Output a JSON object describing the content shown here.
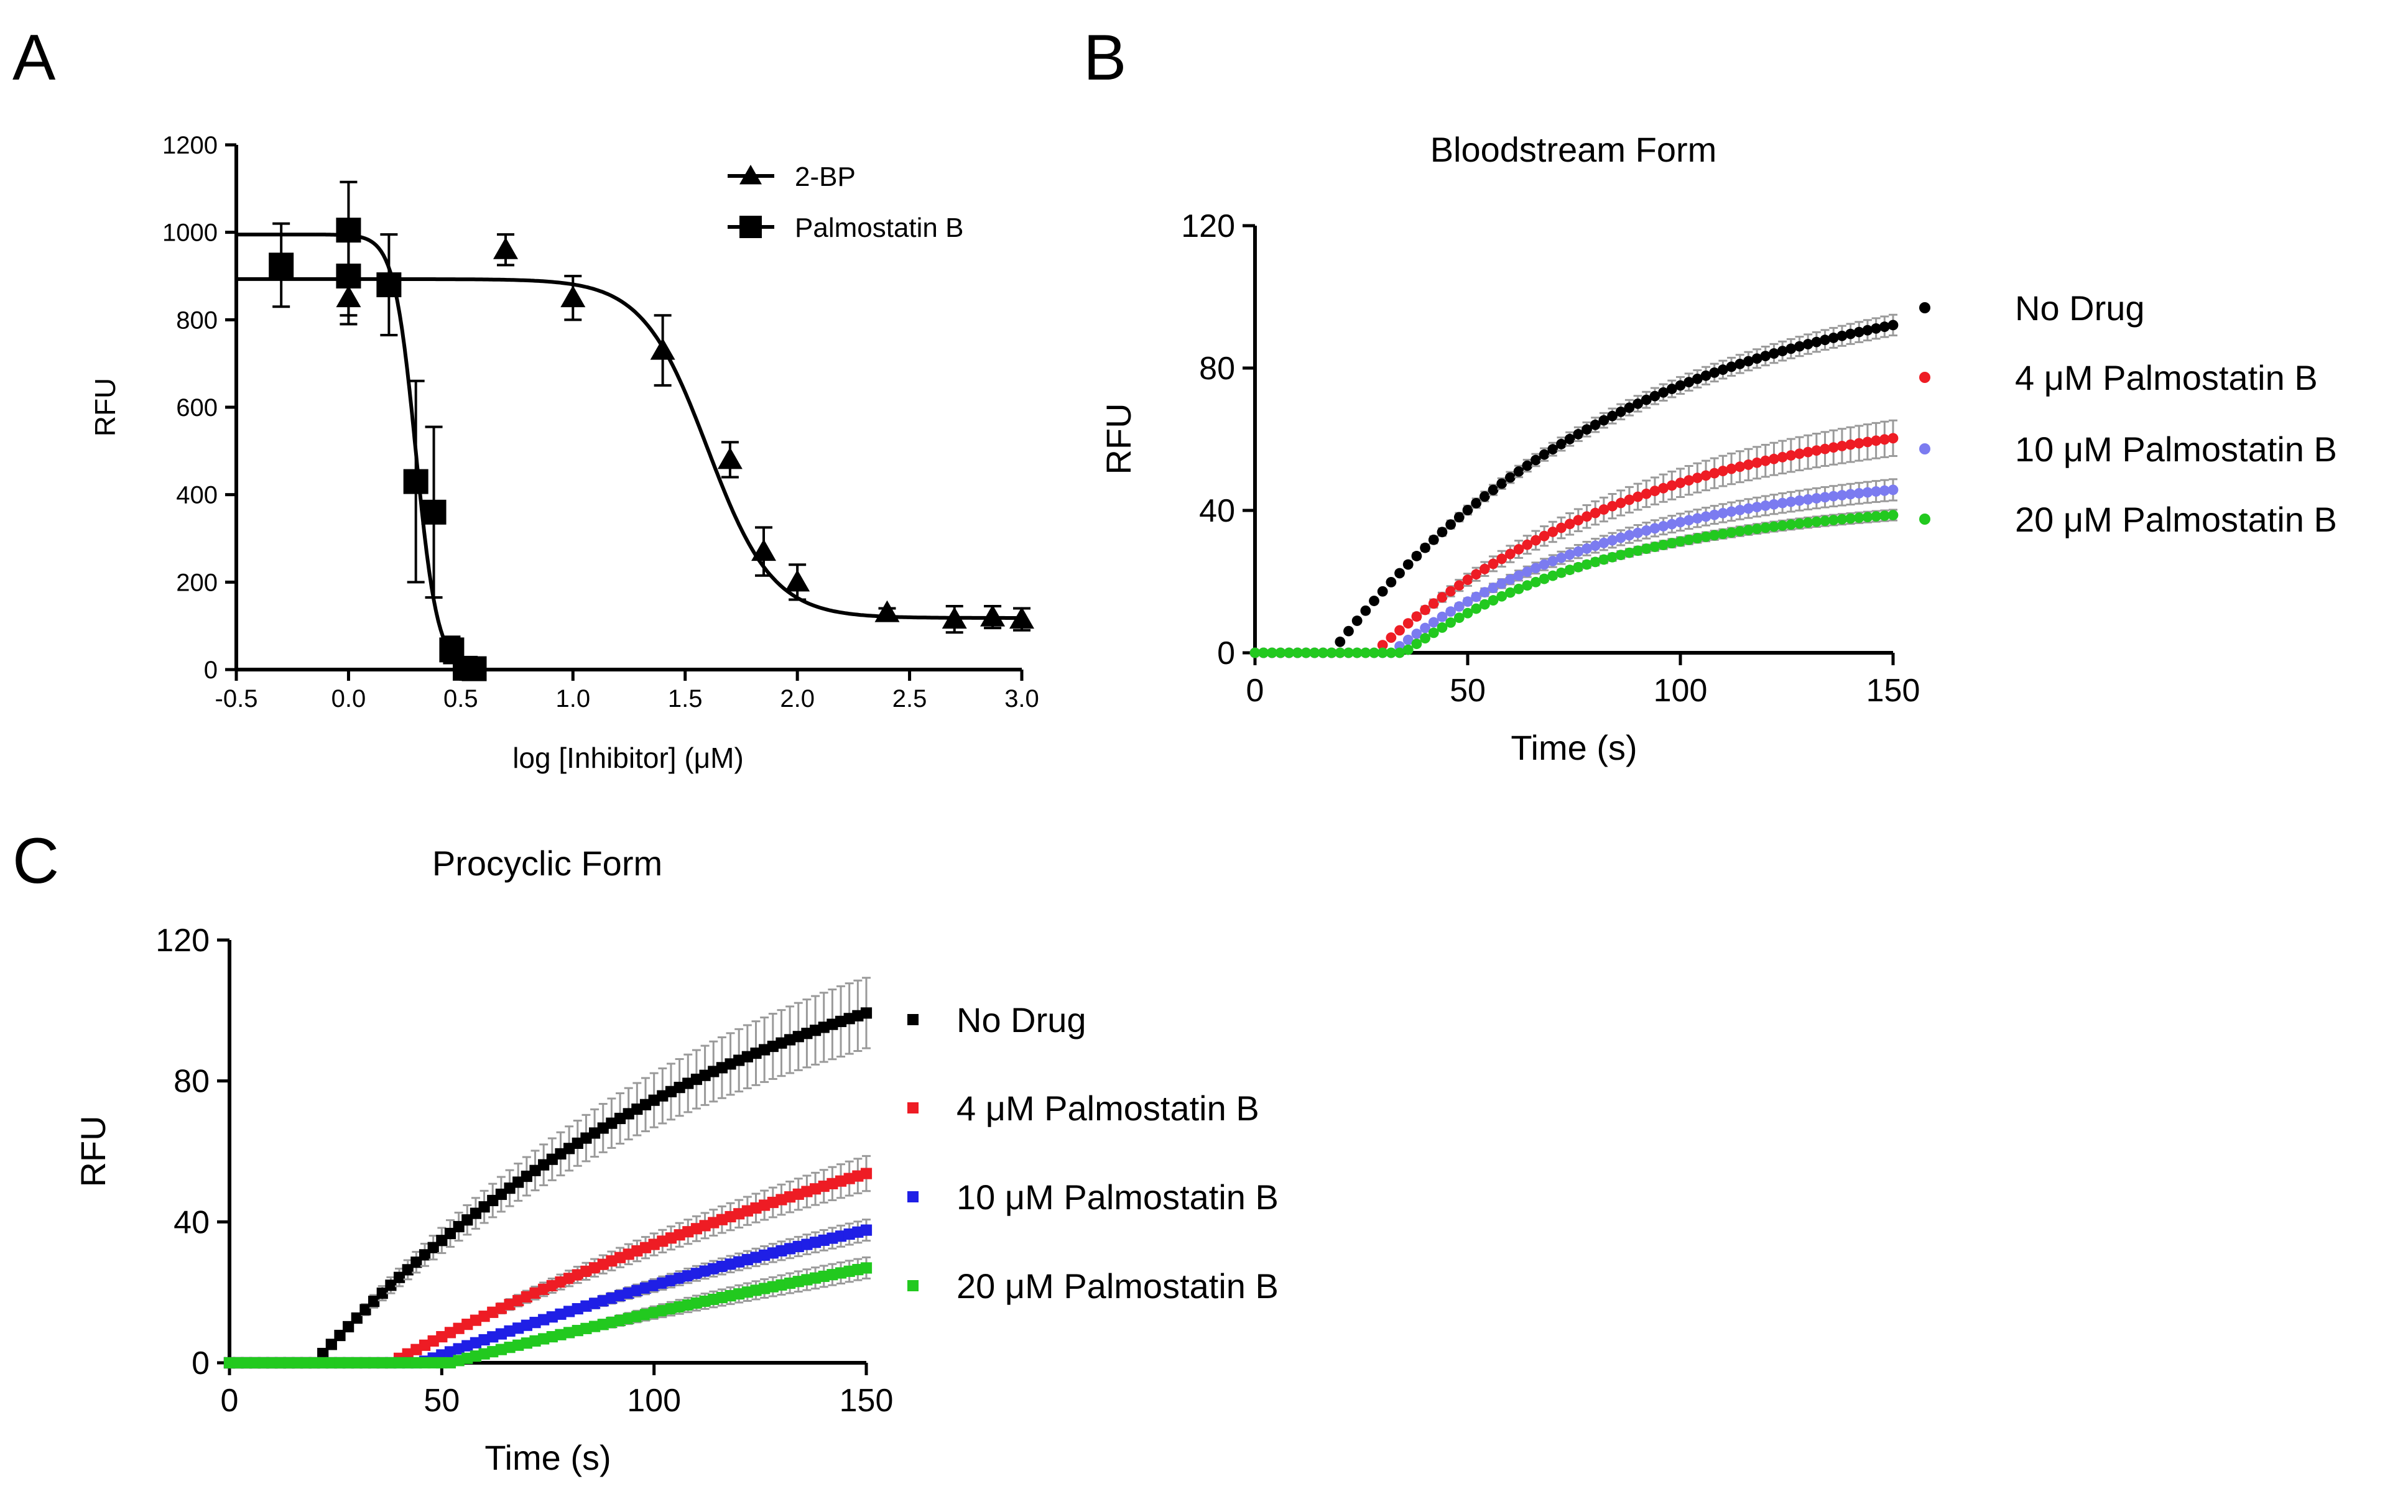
{
  "figure": {
    "panels": [
      "A",
      "B",
      "C"
    ]
  },
  "colors": {
    "black": "#000000",
    "red": "#ee1c24",
    "blue_light": "#7b7bf0",
    "blue": "#1f1fe6",
    "green": "#22c91f",
    "errorbar": "#9a9a9a"
  },
  "chart_data": [
    {
      "id": "A",
      "type": "scatter",
      "title": "",
      "xlabel": "log [Inhibitor] (μM)",
      "ylabel": "RFU",
      "xlim": [
        -0.5,
        3.0
      ],
      "ylim": [
        0,
        1200
      ],
      "xticks": [
        "-0.5",
        "0.0",
        "0.5",
        "1.0",
        "1.5",
        "2.0",
        "2.5",
        "3.0"
      ],
      "yticks": [
        "0",
        "200",
        "400",
        "600",
        "800",
        "1000",
        "1200"
      ],
      "legend_position": "top-right",
      "series": [
        {
          "name": "2-BP",
          "marker": "triangle",
          "color": "#000000",
          "points": [
            {
              "x": 0.0,
              "y": 850,
              "err": 60
            },
            {
              "x": 0.7,
              "y": 960,
              "err": 35
            },
            {
              "x": 1.0,
              "y": 850,
              "err": 50
            },
            {
              "x": 1.4,
              "y": 730,
              "err": 80
            },
            {
              "x": 1.7,
              "y": 480,
              "err": 40
            },
            {
              "x": 1.85,
              "y": 270,
              "err": 55
            },
            {
              "x": 2.0,
              "y": 200,
              "err": 40
            },
            {
              "x": 2.4,
              "y": 130,
              "err": 10
            },
            {
              "x": 2.7,
              "y": 115,
              "err": 30
            },
            {
              "x": 2.87,
              "y": 120,
              "err": 25
            },
            {
              "x": 3.0,
              "y": 115,
              "err": 25
            }
          ],
          "fit": {
            "top": 893,
            "bottom": 118,
            "log_ic50": 1.6,
            "hill": 3.0
          }
        },
        {
          "name": "Palmostatin B",
          "marker": "square",
          "color": "#000000",
          "points": [
            {
              "x": -0.3,
              "y": 925,
              "err": 95
            },
            {
              "x": 0.0,
              "y": 1005,
              "err": 110
            },
            {
              "x": 0.0,
              "y": 900,
              "err": 90
            },
            {
              "x": 0.18,
              "y": 880,
              "err": 115
            },
            {
              "x": 0.3,
              "y": 430,
              "err": 230
            },
            {
              "x": 0.38,
              "y": 360,
              "err": 195
            },
            {
              "x": 0.46,
              "y": 45,
              "err": 30
            },
            {
              "x": 0.52,
              "y": 3,
              "err": 5
            },
            {
              "x": 0.56,
              "y": 2,
              "err": 5
            }
          ],
          "fit": {
            "top": 995,
            "bottom": 0,
            "log_ic50": 0.3,
            "hill": 9.0
          }
        }
      ]
    },
    {
      "id": "B",
      "type": "scatter",
      "title": "Bloodstream Form",
      "xlabel": "Time (s)",
      "ylabel": "RFU",
      "xlim": [
        0,
        150
      ],
      "ylim": [
        0,
        120
      ],
      "xticks": [
        "0",
        "50",
        "100",
        "150"
      ],
      "yticks": [
        "0",
        "40",
        "80",
        "120"
      ],
      "legend_position": "right",
      "series": [
        {
          "name": "No Drug",
          "color": "#000000",
          "plateau": 108,
          "k": 0.0145,
          "lag": 18,
          "final": 95,
          "err": 3
        },
        {
          "name": "4 μM Palmostatin B",
          "color": "#ee1c24",
          "plateau": 71,
          "k": 0.0155,
          "lag": 28,
          "final": 60,
          "err": 5
        },
        {
          "name": "10 μM Palmostatin B",
          "color": "#7b7bf0",
          "plateau": 52,
          "k": 0.018,
          "lag": 32,
          "final": 46,
          "err": 3
        },
        {
          "name": "20 μM Palmostatin B",
          "color": "#22c91f",
          "plateau": 43,
          "k": 0.02,
          "lag": 35,
          "final": 38,
          "err": 1.5
        }
      ]
    },
    {
      "id": "C",
      "type": "scatter",
      "title": "Procyclic Form",
      "xlabel": "Time (s)",
      "ylabel": "RFU",
      "xlim": [
        0,
        150
      ],
      "ylim": [
        0,
        120
      ],
      "xticks": [
        "0",
        "50",
        "100",
        "150"
      ],
      "yticks": [
        "0",
        "40",
        "80",
        "120"
      ],
      "legend_position": "right",
      "series": [
        {
          "name": "No Drug",
          "color": "#000000",
          "plateau": 140,
          "k": 0.0095,
          "lag": 20,
          "final": 97,
          "err": 10
        },
        {
          "name": "4 μM Palmostatin B",
          "color": "#ee1c24",
          "plateau": 120,
          "k": 0.0053,
          "lag": 38,
          "final": 54,
          "err": 5
        },
        {
          "name": "10 μM Palmostatin B",
          "color": "#1f1fe6",
          "plateau": 100,
          "k": 0.0045,
          "lag": 45,
          "final": 36,
          "err": 3
        },
        {
          "name": "20 μM Palmostatin B",
          "color": "#22c91f",
          "plateau": 100,
          "k": 0.0032,
          "lag": 52,
          "final": 24,
          "err": 3
        }
      ]
    }
  ]
}
